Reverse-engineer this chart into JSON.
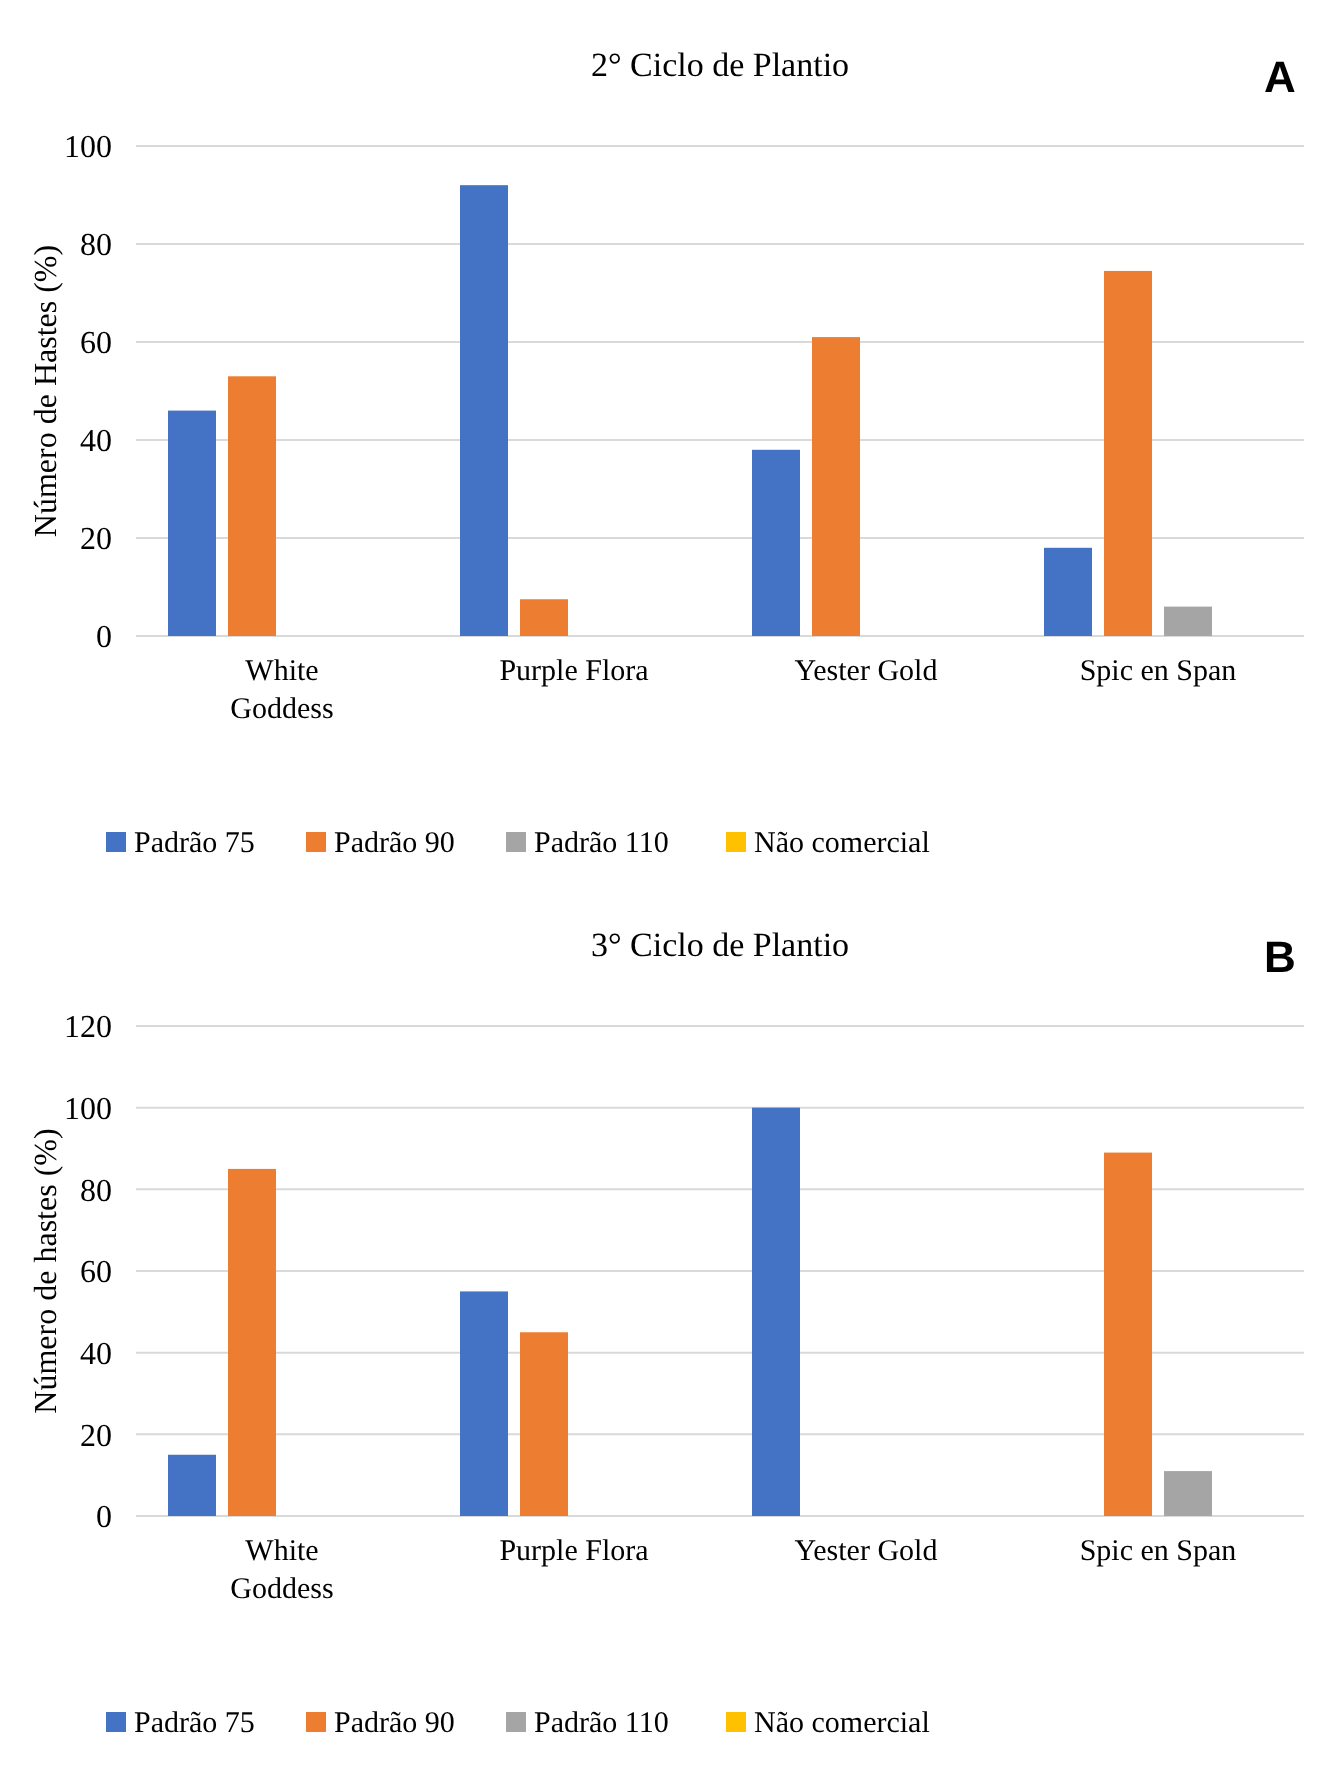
{
  "chart_data": [
    {
      "type": "bar",
      "title": "2° Ciclo de Plantio",
      "ylabel": "Número de Hastes (%)",
      "annotations": [
        "A"
      ],
      "categories": [
        "White Goddess",
        "Purple Flora",
        "Yester Gold",
        "Spic en Span"
      ],
      "series": [
        {
          "name": "Padrão 75",
          "color": "#4472c4",
          "values": [
            46,
            92,
            38,
            18
          ]
        },
        {
          "name": "Padrão 90",
          "color": "#ed7d31",
          "values": [
            53,
            7.5,
            61,
            74.5
          ]
        },
        {
          "name": "Padrão 110",
          "color": "#a5a5a5",
          "values": [
            0,
            0,
            0,
            6
          ]
        },
        {
          "name": "Não comercial",
          "color": "#ffc000",
          "values": [
            0,
            0,
            0,
            0
          ]
        }
      ],
      "ylim": [
        0,
        100
      ],
      "yticks": [
        0,
        20,
        40,
        60,
        80,
        100
      ],
      "grid": "y",
      "legend": "bottom"
    },
    {
      "type": "bar",
      "title": "3° Ciclo de Plantio",
      "ylabel": "Número de hastes (%)",
      "annotations": [
        "B"
      ],
      "categories": [
        "White Goddess",
        "Purple Flora",
        "Yester Gold",
        "Spic en Span"
      ],
      "series": [
        {
          "name": "Padrão 75",
          "color": "#4472c4",
          "values": [
            15,
            55,
            100,
            0
          ]
        },
        {
          "name": "Padrão 90",
          "color": "#ed7d31",
          "values": [
            85,
            45,
            0,
            89
          ]
        },
        {
          "name": "Padrão 110",
          "color": "#a5a5a5",
          "values": [
            0,
            0,
            0,
            11
          ]
        },
        {
          "name": "Não comercial",
          "color": "#ffc000",
          "values": [
            0,
            0,
            0,
            0
          ]
        }
      ],
      "ylim": [
        0,
        120
      ],
      "yticks": [
        0,
        20,
        40,
        60,
        80,
        100,
        120
      ],
      "grid": "y",
      "legend": "bottom"
    }
  ]
}
